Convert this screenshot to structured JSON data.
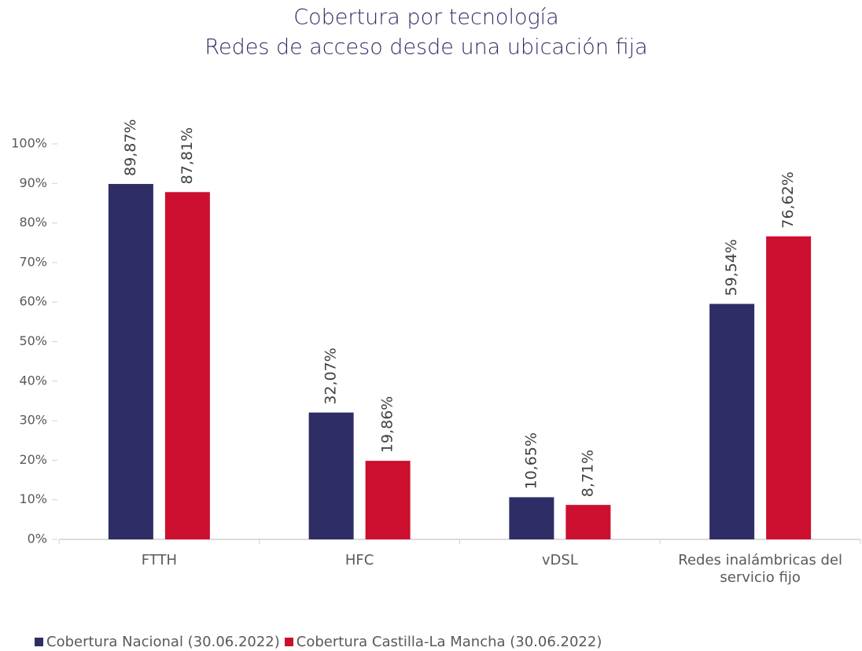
{
  "chart_data": {
    "type": "bar",
    "title": "Cobertura por tecnología",
    "subtitle": "Redes de acceso desde una ubicación fija",
    "categories": [
      "FTTH",
      "HFC",
      "vDSL",
      "Redes inalámbricas del servicio fijo"
    ],
    "series": [
      {
        "name": "Cobertura Nacional (30.06.2022)",
        "color": "#2e2d66",
        "values": [
          89.87,
          32.07,
          10.65,
          59.54
        ],
        "value_labels": [
          "89,87%",
          "32,07%",
          "10,65%",
          "59,54%"
        ]
      },
      {
        "name": "Cobertura Castilla-La Mancha (30.06.2022)",
        "color": "#cc0f2f",
        "values": [
          87.81,
          19.86,
          8.71,
          76.62
        ],
        "value_labels": [
          "87,81%",
          "19,86%",
          "8,71%",
          "76,62%"
        ]
      }
    ],
    "ylim": [
      0,
      100
    ],
    "yticks": [
      {
        "value": 0,
        "label": "0%"
      },
      {
        "value": 10,
        "label": "10%"
      },
      {
        "value": 20,
        "label": "20%"
      },
      {
        "value": 30,
        "label": "30%"
      },
      {
        "value": 40,
        "label": "40%"
      },
      {
        "value": 50,
        "label": "50%"
      },
      {
        "value": 60,
        "label": "60%"
      },
      {
        "value": 70,
        "label": "70%"
      },
      {
        "value": 80,
        "label": "80%"
      },
      {
        "value": 90,
        "label": "90%"
      },
      {
        "value": 100,
        "label": "100%"
      }
    ],
    "grid": false
  }
}
